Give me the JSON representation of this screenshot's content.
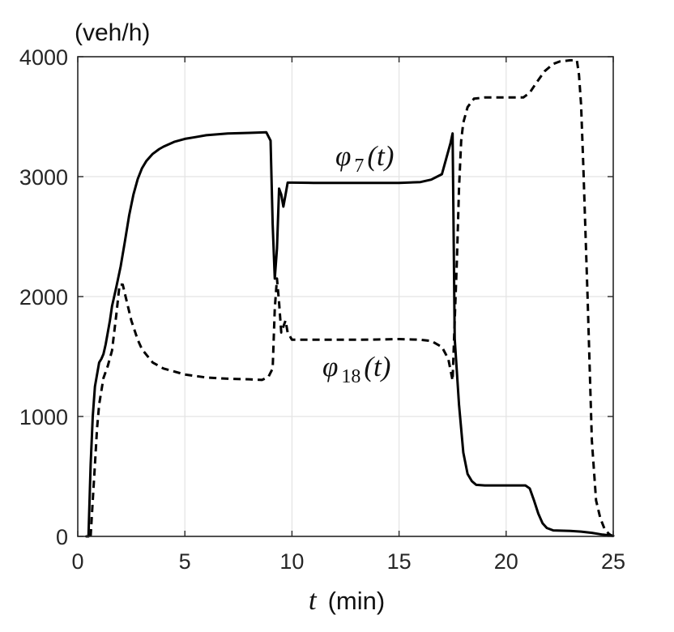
{
  "chart_data": {
    "type": "line",
    "ylabel": "(veh/h)",
    "xlabel": {
      "var": "t",
      "unit": "(min)"
    },
    "xlim": [
      0,
      25
    ],
    "ylim": [
      0,
      4000
    ],
    "xticks": [
      0,
      5,
      10,
      15,
      20,
      25
    ],
    "yticks": [
      0,
      1000,
      2000,
      3000,
      4000
    ],
    "grid": true,
    "series": [
      {
        "name": "φ7(t)",
        "style": "solid",
        "color": "#000000",
        "x": [
          0.4,
          0.5,
          0.6,
          0.7,
          0.8,
          1.0,
          1.1,
          1.2,
          1.3,
          1.5,
          1.6,
          1.8,
          2.0,
          2.2,
          2.4,
          2.6,
          2.8,
          3.0,
          3.2,
          3.5,
          3.8,
          4.0,
          4.5,
          5.0,
          5.5,
          6.0,
          7.0,
          8.0,
          8.8,
          9.0,
          9.1,
          9.2,
          9.3,
          9.4,
          9.5,
          9.6,
          9.7,
          9.8,
          10.0,
          11.0,
          12.0,
          13.0,
          14.0,
          15.0,
          16.0,
          16.5,
          17.0,
          17.2,
          17.4,
          17.5,
          17.6,
          17.8,
          18.0,
          18.2,
          18.4,
          18.6,
          19.0,
          20.0,
          20.5,
          20.9,
          21.1,
          21.3,
          21.5,
          21.7,
          21.9,
          22.2,
          23.0,
          23.5,
          24.0,
          24.5,
          25.0
        ],
        "values": [
          0,
          0,
          600,
          1000,
          1250,
          1450,
          1480,
          1520,
          1600,
          1800,
          1920,
          2080,
          2250,
          2460,
          2680,
          2850,
          2980,
          3070,
          3130,
          3190,
          3230,
          3250,
          3290,
          3315,
          3330,
          3345,
          3360,
          3365,
          3370,
          3300,
          2600,
          2150,
          2400,
          2900,
          2850,
          2750,
          2850,
          2950,
          2950,
          2948,
          2947,
          2947,
          2947,
          2948,
          2955,
          2975,
          3020,
          3150,
          3280,
          3360,
          1650,
          1100,
          700,
          520,
          460,
          430,
          425,
          425,
          425,
          425,
          400,
          300,
          190,
          110,
          70,
          50,
          45,
          40,
          30,
          15,
          5
        ]
      },
      {
        "name": "φ18(t)",
        "style": "dashed",
        "color": "#000000",
        "x": [
          0.6,
          0.7,
          0.8,
          0.9,
          1.0,
          1.2,
          1.4,
          1.6,
          1.8,
          1.95,
          2.1,
          2.3,
          2.5,
          2.8,
          3.0,
          3.5,
          4.0,
          5.0,
          6.0,
          7.0,
          8.0,
          8.6,
          8.9,
          9.1,
          9.2,
          9.3,
          9.4,
          9.5,
          9.6,
          9.7,
          9.8,
          10.0,
          11.0,
          12.0,
          13.0,
          14.0,
          15.0,
          16.0,
          16.5,
          17.0,
          17.3,
          17.5,
          17.6,
          17.7,
          17.8,
          17.9,
          18.0,
          18.2,
          18.5,
          19.0,
          20.0,
          20.8,
          21.1,
          21.4,
          21.8,
          22.2,
          22.5,
          23.0,
          23.3,
          23.4,
          23.5,
          23.6,
          23.8,
          24.0,
          24.2,
          24.4,
          24.6,
          24.8,
          25.0
        ],
        "values": [
          0,
          300,
          600,
          900,
          1100,
          1320,
          1420,
          1550,
          1850,
          2100,
          2100,
          1950,
          1800,
          1640,
          1560,
          1450,
          1400,
          1350,
          1325,
          1315,
          1310,
          1305,
          1330,
          1400,
          1900,
          2150,
          1950,
          1700,
          1750,
          1800,
          1700,
          1640,
          1640,
          1640,
          1640,
          1642,
          1645,
          1640,
          1630,
          1580,
          1480,
          1300,
          1800,
          2300,
          2900,
          3300,
          3450,
          3580,
          3650,
          3660,
          3660,
          3660,
          3700,
          3780,
          3880,
          3940,
          3960,
          3970,
          3970,
          3850,
          3600,
          3100,
          2000,
          800,
          300,
          150,
          60,
          20,
          0
        ]
      }
    ],
    "annotations": [
      {
        "base": "φ",
        "subscript": "7",
        "arg": "(t)",
        "series": 0
      },
      {
        "base": "φ",
        "subscript": "18",
        "arg": "(t)",
        "series": 1
      }
    ]
  }
}
